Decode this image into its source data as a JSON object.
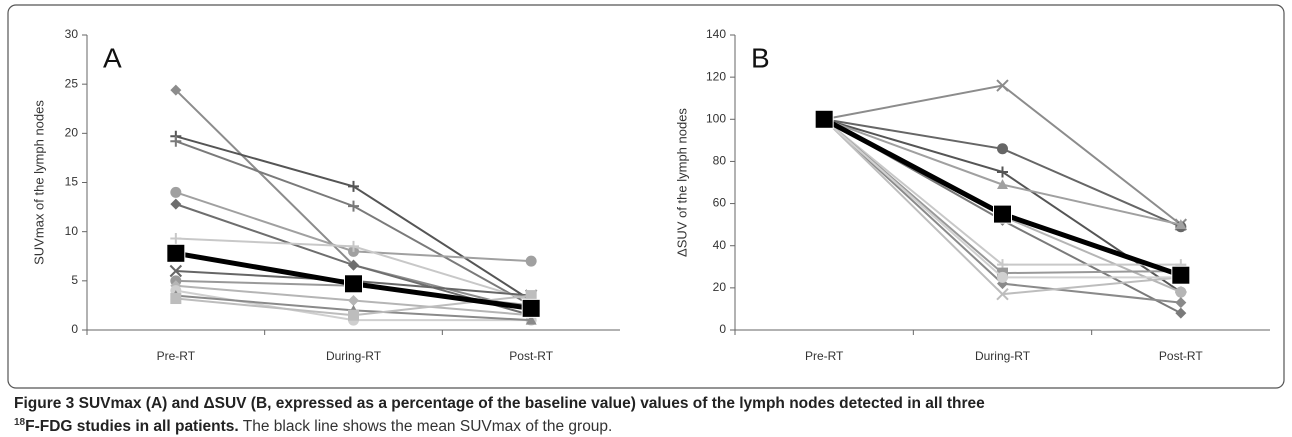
{
  "chart_data": [
    {
      "type": "line",
      "label": "A",
      "ylabel": "SUVmax of the lymph nodes",
      "categories": [
        "Pre-RT",
        "During-RT",
        "Post-RT"
      ],
      "ylim": [
        0,
        30
      ],
      "yticks": [
        0,
        5,
        10,
        15,
        20,
        25,
        30
      ],
      "series": [
        {
          "color": "#8c8c8c",
          "marker": "diamond",
          "values": [
            24.4,
            6.6,
            2
          ]
        },
        {
          "color": "#555555",
          "marker": "plus",
          "values": [
            19.7,
            14.6,
            3
          ]
        },
        {
          "color": "#7a7a7a",
          "marker": "plus",
          "values": [
            19.2,
            12.6,
            2.5
          ]
        },
        {
          "color": "#a0a0a0",
          "marker": "circle",
          "values": [
            14,
            8,
            7
          ]
        },
        {
          "color": "#6e6e6e",
          "marker": "diamond",
          "values": [
            12.8,
            6.6,
            1.5
          ]
        },
        {
          "color": "#c8c8c8",
          "marker": "plus",
          "values": [
            9.3,
            8.5,
            3
          ]
        },
        {
          "color": "#666666",
          "marker": "x",
          "values": [
            6,
            5,
            3.5
          ]
        },
        {
          "color": "#999999",
          "marker": "circle",
          "values": [
            5,
            4.5,
            2.5
          ]
        },
        {
          "color": "#b5b5b5",
          "marker": "diamond",
          "values": [
            4.5,
            3,
            1.5
          ]
        },
        {
          "color": "#cfcfcf",
          "marker": "circle",
          "values": [
            4,
            1,
            1
          ]
        },
        {
          "color": "#8a8a8a",
          "marker": "triangle",
          "values": [
            3.5,
            2,
            1
          ]
        },
        {
          "color": "#bdbdbd",
          "marker": "square",
          "values": [
            3.2,
            1.5,
            3.5
          ]
        },
        {
          "color": "#000000",
          "marker": "square",
          "line_width": 5,
          "values": [
            7.8,
            4.7,
            2.2
          ]
        }
      ]
    },
    {
      "type": "line",
      "label": "B",
      "ylabel": "ΔSUV of the lymph nodes",
      "categories": [
        "Pre-RT",
        "During-RT",
        "Post-RT"
      ],
      "ylim": [
        0,
        140
      ],
      "yticks": [
        0,
        20,
        40,
        60,
        80,
        100,
        120,
        140
      ],
      "series": [
        {
          "color": "#8c8c8c",
          "marker": "x",
          "values": [
            100,
            116,
            50
          ]
        },
        {
          "color": "#666666",
          "marker": "circle",
          "values": [
            100,
            86,
            49
          ]
        },
        {
          "color": "#555555",
          "marker": "plus",
          "values": [
            100,
            75,
            18
          ]
        },
        {
          "color": "#7a7a7a",
          "marker": "diamond",
          "values": [
            100,
            52,
            8
          ]
        },
        {
          "color": "#a0a0a0",
          "marker": "triangle",
          "values": [
            100,
            69,
            50
          ]
        },
        {
          "color": "#b5b5b5",
          "marker": "circle",
          "values": [
            100,
            54,
            18
          ]
        },
        {
          "color": "#c8c8c8",
          "marker": "plus",
          "values": [
            100,
            31,
            31
          ]
        },
        {
          "color": "#999999",
          "marker": "square",
          "values": [
            100,
            27,
            28
          ]
        },
        {
          "color": "#8a8a8a",
          "marker": "diamond",
          "values": [
            100,
            22,
            13
          ]
        },
        {
          "color": "#bdbdbd",
          "marker": "x",
          "values": [
            100,
            17,
            25
          ]
        },
        {
          "color": "#d0d0d0",
          "marker": "circle",
          "values": [
            100,
            25,
            25
          ]
        },
        {
          "color": "#000000",
          "marker": "square",
          "line_width": 5,
          "values": [
            100,
            55,
            26
          ]
        }
      ]
    }
  ],
  "caption": {
    "label": "Figure 3",
    "title_start": "SUVmax (A) and ΔSUV (B, expressed as a percentage of the baseline value) values of the lymph nodes detected in all three",
    "superscript": "18",
    "title_end": "F-FDG studies in all patients.",
    "text": "The black line shows the mean SUVmax of the group."
  }
}
